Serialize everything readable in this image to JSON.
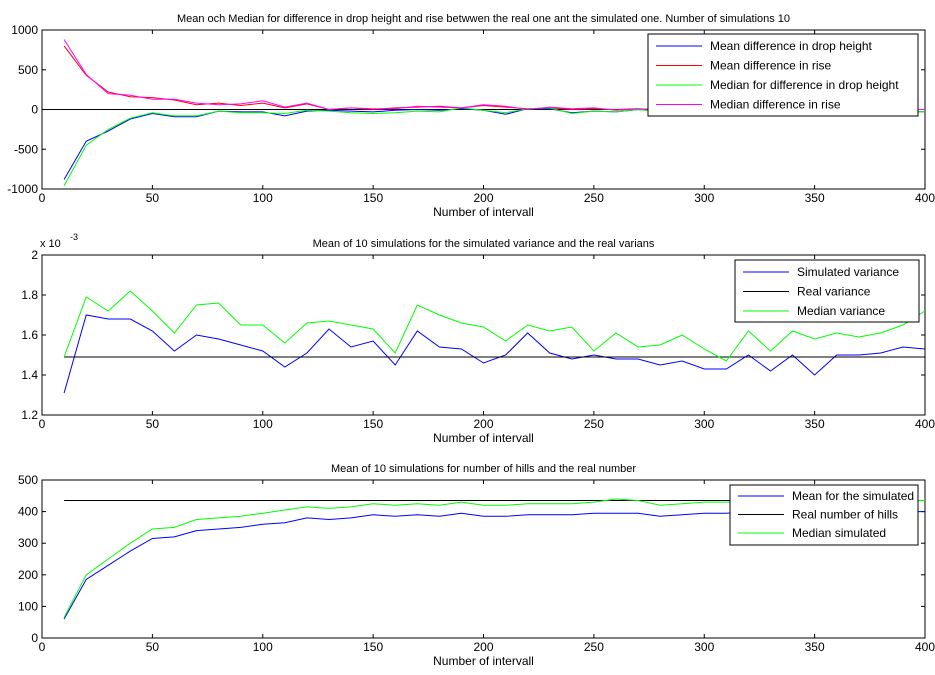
{
  "chart_data": [
    {
      "type": "line",
      "title": "Mean och Median for difference in drop height and rise betwwen the real one ant the simulated one. Number of simulations 10",
      "xlabel": "Number of intervall",
      "ylabel": "",
      "xlim": [
        0,
        400
      ],
      "ylim": [
        -1000,
        1000
      ],
      "xticks": [
        0,
        50,
        100,
        150,
        200,
        250,
        300,
        350,
        400
      ],
      "yticks": [
        -1000,
        -500,
        0,
        500,
        1000
      ],
      "ytick_labels": [
        "-1000",
        "-500",
        "0",
        "500",
        "1000"
      ],
      "grid": false,
      "legend_position": "top-right",
      "x": [
        10,
        20,
        30,
        40,
        50,
        60,
        70,
        80,
        90,
        100,
        110,
        120,
        130,
        140,
        150,
        160,
        170,
        180,
        190,
        200,
        210,
        220,
        230,
        240,
        250,
        260,
        270,
        280,
        290,
        300,
        310,
        320,
        330,
        340,
        350,
        360,
        370,
        380,
        390,
        400
      ],
      "reference_lines": [
        {
          "y": 0,
          "color": "#000000"
        }
      ],
      "series": [
        {
          "name": "Mean difference in drop height",
          "color": "#0000ff",
          "values": [
            -880,
            -400,
            -270,
            -120,
            -50,
            -90,
            -90,
            -20,
            -30,
            -30,
            -80,
            -20,
            -10,
            -20,
            -30,
            -10,
            0,
            -10,
            10,
            -10,
            -60,
            10,
            10,
            -40,
            -20,
            -30,
            0,
            -20,
            -10,
            -20,
            -30,
            -40,
            -50,
            -30,
            -30,
            -20,
            -20,
            -30,
            -20,
            -30
          ]
        },
        {
          "name": "Mean difference in rise",
          "color": "#ff0000",
          "values": [
            800,
            430,
            220,
            160,
            150,
            120,
            60,
            80,
            50,
            80,
            20,
            70,
            0,
            20,
            0,
            20,
            30,
            40,
            20,
            50,
            30,
            10,
            20,
            0,
            10,
            0,
            10,
            -10,
            0,
            -10,
            -20,
            -20,
            -20,
            -10,
            -10,
            -10,
            -10,
            -10,
            0,
            0
          ]
        },
        {
          "name": "Median for difference  in drop height",
          "color": "#00ff00",
          "values": [
            -960,
            -450,
            -250,
            -110,
            -40,
            -80,
            -80,
            -20,
            -40,
            -40,
            -50,
            -10,
            -20,
            -40,
            -50,
            -40,
            -20,
            -30,
            20,
            -10,
            -40,
            10,
            20,
            -50,
            -20,
            -30,
            0,
            -30,
            -20,
            -30,
            -30,
            -40,
            -50,
            -40,
            -30,
            -20,
            -20,
            -30,
            -30,
            -30
          ]
        },
        {
          "name": "Median difference in rise",
          "color": "#ff00ff",
          "values": [
            880,
            440,
            200,
            180,
            130,
            130,
            80,
            60,
            70,
            110,
            30,
            80,
            0,
            20,
            10,
            10,
            40,
            30,
            20,
            60,
            40,
            0,
            30,
            10,
            20,
            -10,
            10,
            0,
            0,
            0,
            -10,
            -10,
            -20,
            -10,
            -10,
            -10,
            -10,
            -10,
            0,
            0
          ]
        }
      ]
    },
    {
      "type": "line",
      "title": "Mean of 10 simulations for the simulated variance and the real varians",
      "xlabel": "Number of intervall",
      "ylabel": "",
      "exponent_label": "x 10",
      "exponent_power": "-3",
      "xlim": [
        0,
        400
      ],
      "ylim": [
        0.0012,
        0.002
      ],
      "xticks": [
        0,
        50,
        100,
        150,
        200,
        250,
        300,
        350,
        400
      ],
      "yticks": [
        0.0012,
        0.0014,
        0.0016,
        0.0018,
        0.002
      ],
      "ytick_labels": [
        "1.2",
        "1.4",
        "1.6",
        "1.8",
        "2"
      ],
      "grid": false,
      "legend_position": "top-right",
      "x": [
        10,
        20,
        30,
        40,
        50,
        60,
        70,
        80,
        90,
        100,
        110,
        120,
        130,
        140,
        150,
        160,
        170,
        180,
        190,
        200,
        210,
        220,
        230,
        240,
        250,
        260,
        270,
        280,
        290,
        300,
        310,
        320,
        330,
        340,
        350,
        360,
        370,
        380,
        390,
        400
      ],
      "series": [
        {
          "name": "Simulated variance",
          "color": "#0000ff",
          "values": [
            0.00131,
            0.0017,
            0.00168,
            0.00168,
            0.00162,
            0.00152,
            0.0016,
            0.00158,
            0.00155,
            0.00152,
            0.00144,
            0.00151,
            0.00163,
            0.00154,
            0.00157,
            0.00145,
            0.00162,
            0.00154,
            0.00153,
            0.00146,
            0.0015,
            0.00161,
            0.00151,
            0.00148,
            0.0015,
            0.00148,
            0.00148,
            0.00145,
            0.00147,
            0.00143,
            0.00143,
            0.0015,
            0.00142,
            0.0015,
            0.0014,
            0.0015,
            0.0015,
            0.00151,
            0.00154,
            0.00153
          ]
        },
        {
          "name": "Real variance",
          "color": "#000000",
          "values": [
            0.00149,
            0.00149,
            0.00149,
            0.00149,
            0.00149,
            0.00149,
            0.00149,
            0.00149,
            0.00149,
            0.00149,
            0.00149,
            0.00149,
            0.00149,
            0.00149,
            0.00149,
            0.00149,
            0.00149,
            0.00149,
            0.00149,
            0.00149,
            0.00149,
            0.00149,
            0.00149,
            0.00149,
            0.00149,
            0.00149,
            0.00149,
            0.00149,
            0.00149,
            0.00149,
            0.00149,
            0.00149,
            0.00149,
            0.00149,
            0.00149,
            0.00149,
            0.00149,
            0.00149,
            0.00149,
            0.00149
          ]
        },
        {
          "name": "Median variance",
          "color": "#00ff00",
          "values": [
            0.00149,
            0.00179,
            0.00172,
            0.00182,
            0.00172,
            0.00161,
            0.00175,
            0.00176,
            0.00165,
            0.00165,
            0.00156,
            0.00166,
            0.00167,
            0.00165,
            0.00163,
            0.00151,
            0.00175,
            0.0017,
            0.00166,
            0.00164,
            0.00157,
            0.00165,
            0.00162,
            0.00164,
            0.00152,
            0.00161,
            0.00154,
            0.00155,
            0.0016,
            0.00153,
            0.00147,
            0.00162,
            0.00152,
            0.00162,
            0.00158,
            0.00161,
            0.00159,
            0.00161,
            0.00165,
            0.00172
          ]
        }
      ]
    },
    {
      "type": "line",
      "title": "Mean of 10 simulations for number of hills and the real number",
      "xlabel": "Number of intervall",
      "ylabel": "",
      "xlim": [
        0,
        400
      ],
      "ylim": [
        0,
        500
      ],
      "xticks": [
        0,
        50,
        100,
        150,
        200,
        250,
        300,
        350,
        400
      ],
      "yticks": [
        0,
        100,
        200,
        300,
        400,
        500
      ],
      "ytick_labels": [
        "0",
        "100",
        "200",
        "300",
        "400",
        "500"
      ],
      "grid": false,
      "legend_position": "top-right",
      "x": [
        10,
        20,
        30,
        40,
        50,
        60,
        70,
        80,
        90,
        100,
        110,
        120,
        130,
        140,
        150,
        160,
        170,
        180,
        190,
        200,
        210,
        220,
        230,
        240,
        250,
        260,
        270,
        280,
        290,
        300,
        310,
        320,
        330,
        340,
        350,
        360,
        370,
        380,
        390,
        400
      ],
      "series": [
        {
          "name": "Mean for the simulated",
          "color": "#0000ff",
          "values": [
            60,
            185,
            230,
            275,
            315,
            320,
            340,
            345,
            350,
            360,
            365,
            380,
            375,
            380,
            390,
            385,
            390,
            385,
            395,
            385,
            385,
            390,
            390,
            390,
            395,
            395,
            395,
            385,
            390,
            395,
            395,
            400,
            400,
            400,
            400,
            400,
            400,
            400,
            400,
            400
          ]
        },
        {
          "name": "Real number of hills",
          "color": "#000000",
          "values": [
            435,
            435,
            435,
            435,
            435,
            435,
            435,
            435,
            435,
            435,
            435,
            435,
            435,
            435,
            435,
            435,
            435,
            435,
            435,
            435,
            435,
            435,
            435,
            435,
            435,
            435,
            435,
            435,
            435,
            435,
            435,
            435,
            435,
            435,
            435,
            435,
            435,
            435,
            435,
            435
          ]
        },
        {
          "name": "Median simulated",
          "color": "#00ff00",
          "values": [
            65,
            200,
            250,
            300,
            345,
            350,
            375,
            380,
            385,
            395,
            405,
            415,
            410,
            415,
            425,
            420,
            425,
            420,
            430,
            420,
            420,
            425,
            425,
            425,
            430,
            440,
            435,
            420,
            425,
            430,
            430,
            430,
            435,
            430,
            435,
            435,
            435,
            435,
            435,
            435
          ]
        }
      ]
    }
  ]
}
